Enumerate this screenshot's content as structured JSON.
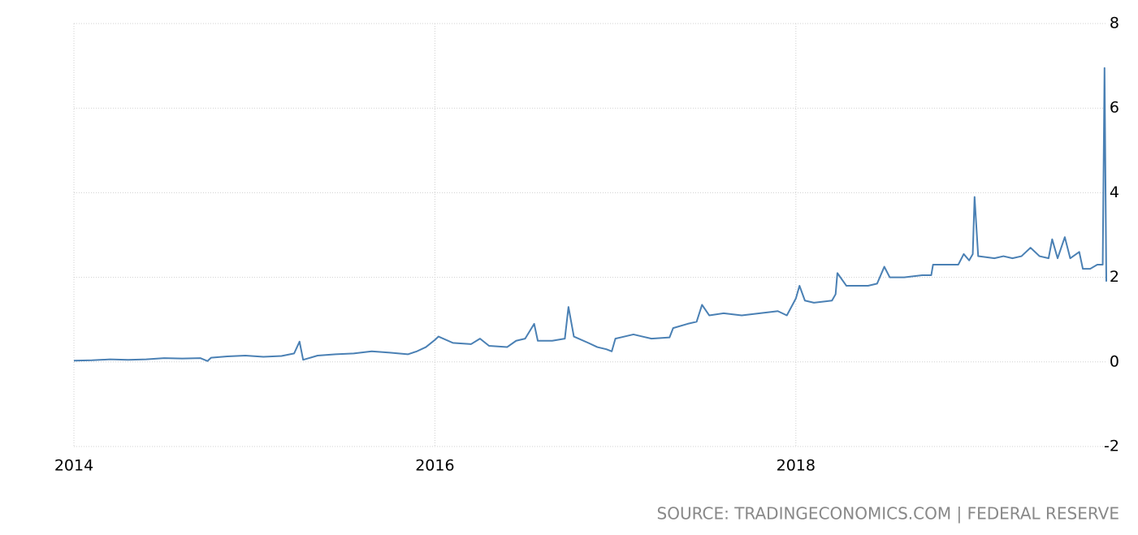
{
  "chart_data": {
    "type": "line",
    "source": "SOURCE: TRADINGECONOMICS.COM | FEDERAL RESERVE",
    "xlim": [
      2014,
      2019.72
    ],
    "xticks": [
      2014,
      2016,
      2018
    ],
    "ylim": [
      -2,
      8
    ],
    "yticks": [
      -2,
      0,
      2,
      4,
      6,
      8
    ],
    "grid": true,
    "series": [
      {
        "color": "#4a80b4",
        "x": [
          2014.0,
          2014.1,
          2014.2,
          2014.3,
          2014.4,
          2014.5,
          2014.6,
          2014.7,
          2014.74,
          2014.76,
          2014.85,
          2014.95,
          2015.05,
          2015.15,
          2015.22,
          2015.25,
          2015.27,
          2015.35,
          2015.45,
          2015.55,
          2015.65,
          2015.75,
          2015.85,
          2015.9,
          2015.95,
          2016.0,
          2016.02,
          2016.1,
          2016.2,
          2016.25,
          2016.3,
          2016.4,
          2016.45,
          2016.5,
          2016.55,
          2016.57,
          2016.65,
          2016.72,
          2016.74,
          2016.77,
          2016.85,
          2016.9,
          2016.95,
          2016.98,
          2017.0,
          2017.1,
          2017.15,
          2017.2,
          2017.3,
          2017.32,
          2017.4,
          2017.45,
          2017.48,
          2017.52,
          2017.6,
          2017.7,
          2017.8,
          2017.9,
          2017.95,
          2018.0,
          2018.02,
          2018.05,
          2018.1,
          2018.2,
          2018.22,
          2018.23,
          2018.28,
          2018.4,
          2018.45,
          2018.49,
          2018.52,
          2018.6,
          2018.7,
          2018.75,
          2018.76,
          2018.85,
          2018.9,
          2018.93,
          2018.96,
          2018.98,
          2018.99,
          2019.01,
          2019.1,
          2019.15,
          2019.2,
          2019.25,
          2019.3,
          2019.35,
          2019.4,
          2019.42,
          2019.45,
          2019.49,
          2019.52,
          2019.57,
          2019.59,
          2019.63,
          2019.67,
          2019.7,
          2019.71,
          2019.72
        ],
        "values": [
          0.03,
          0.04,
          0.06,
          0.05,
          0.06,
          0.09,
          0.08,
          0.09,
          0.02,
          0.1,
          0.13,
          0.15,
          0.12,
          0.14,
          0.2,
          0.48,
          0.05,
          0.15,
          0.18,
          0.2,
          0.25,
          0.22,
          0.18,
          0.25,
          0.35,
          0.52,
          0.6,
          0.45,
          0.42,
          0.55,
          0.38,
          0.35,
          0.5,
          0.55,
          0.9,
          0.5,
          0.5,
          0.55,
          1.3,
          0.6,
          0.45,
          0.35,
          0.3,
          0.25,
          0.55,
          0.65,
          0.6,
          0.55,
          0.58,
          0.8,
          0.9,
          0.95,
          1.35,
          1.1,
          1.15,
          1.1,
          1.15,
          1.2,
          1.1,
          1.5,
          1.8,
          1.45,
          1.4,
          1.45,
          1.6,
          2.1,
          1.8,
          1.8,
          1.85,
          2.25,
          2.0,
          2.0,
          2.05,
          2.05,
          2.3,
          2.3,
          2.3,
          2.55,
          2.4,
          2.55,
          3.9,
          2.5,
          2.45,
          2.5,
          2.45,
          2.5,
          2.7,
          2.5,
          2.45,
          2.9,
          2.45,
          2.95,
          2.45,
          2.6,
          2.2,
          2.2,
          2.3,
          2.3,
          6.95,
          1.9
        ]
      }
    ]
  }
}
